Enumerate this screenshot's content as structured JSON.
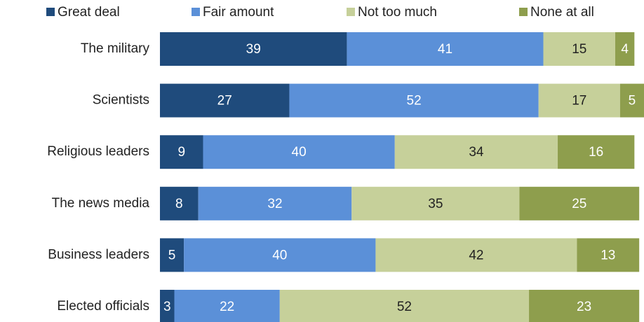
{
  "chart_data": {
    "type": "stacked-bar-horizontal",
    "categories": [
      "The military",
      "Scientists",
      "Religious leaders",
      "The news media",
      "Business leaders",
      "Elected officials"
    ],
    "series": [
      {
        "name": "Great deal",
        "color": "#1f4b7c",
        "values": [
          39,
          27,
          9,
          8,
          5,
          3
        ]
      },
      {
        "name": "Fair amount",
        "color": "#5b90d8",
        "values": [
          41,
          52,
          40,
          32,
          40,
          22
        ]
      },
      {
        "name": "Not too much",
        "color": "#c6d09a",
        "values": [
          15,
          17,
          34,
          35,
          42,
          52
        ]
      },
      {
        "name": "None at all",
        "color": "#8e9e4d",
        "values": [
          4,
          5,
          16,
          25,
          13,
          23
        ]
      }
    ]
  }
}
